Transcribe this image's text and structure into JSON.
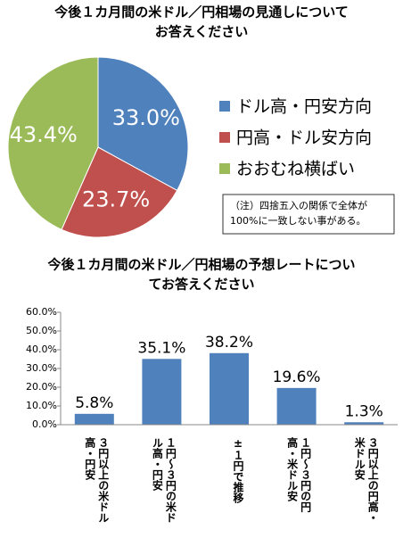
{
  "chart_data": [
    {
      "type": "pie",
      "title": [
        "今後１カ月間の米ドル／円相場の見通しについて",
        "お答えください"
      ],
      "series": [
        {
          "name": "ドル高・円安方向",
          "color": "#4f81bd",
          "values": [
            33.0
          ],
          "value_labels": [
            "33.0%"
          ]
        },
        {
          "name": "円高・ドル安方向",
          "color": "#c0504d",
          "values": [
            23.7
          ],
          "value_labels": [
            "23.7%"
          ]
        },
        {
          "name": "おおむね横ばい",
          "color": "#9bbb59",
          "values": [
            43.4
          ],
          "value_labels": [
            "43.4%"
          ]
        }
      ],
      "annotation": [
        "（注）四捨五入の関係で全体が",
        "100%に一致しない事がある。"
      ]
    },
    {
      "type": "bar",
      "title": [
        "今後１カ月間の米ドル／円相場の予想レートについ",
        "てお答えください"
      ],
      "categories": [
        "３円以上の米ドル高・円安",
        "１円～３円の米ドル高・円安",
        "±１円で推移",
        "１円～３円の円高・米ドル安",
        "３円以上の円高・米ドル安"
      ],
      "values": [
        5.8,
        35.1,
        38.2,
        19.6,
        1.3
      ],
      "value_labels": [
        "5.8%",
        "35.1%",
        "38.2%",
        "19.6%",
        "1.3%"
      ],
      "color": "#4f81bd",
      "ylim": [
        0,
        60
      ],
      "yticks": [
        {
          "value": 0,
          "label": "0.0%"
        },
        {
          "value": 10,
          "label": "10.0%"
        },
        {
          "value": 20,
          "label": "20.0%"
        },
        {
          "value": 30,
          "label": "30.0%"
        },
        {
          "value": 40,
          "label": "40.0%"
        },
        {
          "value": 50,
          "label": "50.0%"
        },
        {
          "value": 60,
          "label": "60.0%"
        }
      ]
    }
  ]
}
